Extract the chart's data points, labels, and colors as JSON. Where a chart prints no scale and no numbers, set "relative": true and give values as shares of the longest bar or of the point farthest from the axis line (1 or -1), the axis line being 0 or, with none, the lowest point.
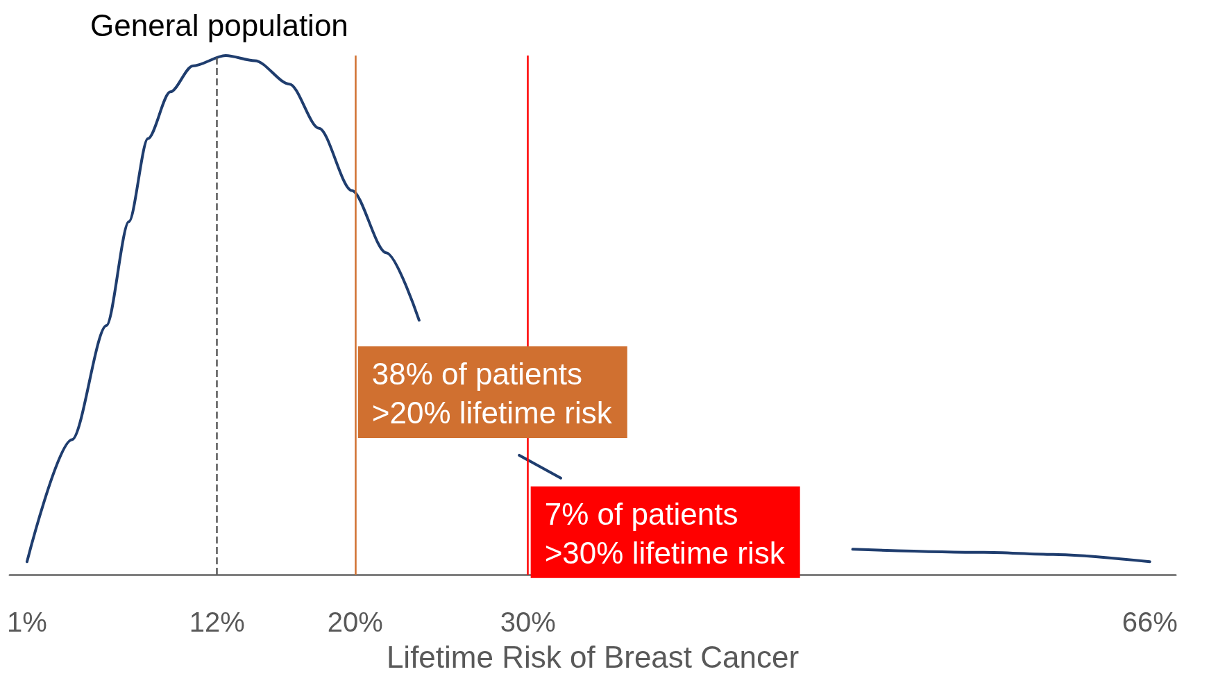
{
  "chart_data": {
    "type": "line",
    "relative": true,
    "xlabel": "Lifetime Risk of Breast Cancer",
    "x": [
      1,
      3.6,
      5.6,
      6.9,
      8.0,
      9.3,
      10.6,
      12.5,
      14.2,
      16.2,
      17.9,
      19.8,
      21.8,
      23.7,
      25.6,
      27.6,
      29.5,
      31.9,
      34.3,
      40,
      48.8,
      56.4,
      60.4,
      66
    ],
    "xlim": [
      0,
      67.5
    ],
    "xticks": [
      {
        "value": 1,
        "label": "1%"
      },
      {
        "value": 12,
        "label": "12%"
      },
      {
        "value": 20,
        "label": "20%"
      },
      {
        "value": 30,
        "label": "30%"
      },
      {
        "value": 66,
        "label": "66%"
      }
    ],
    "series": [
      {
        "color": "#1f3d6e",
        "values": [
          0.025,
          0.26,
          0.48,
          0.68,
          0.84,
          0.93,
          0.98,
          1.0,
          0.99,
          0.945,
          0.86,
          0.74,
          0.62,
          0.49,
          null,
          null,
          0.23,
          0.186,
          null,
          null,
          0.049,
          0.043,
          0.039,
          0.025
        ]
      }
    ],
    "ref_lines": [
      {
        "axis": "x",
        "value": 12,
        "color": "#595959",
        "line_style": "dashed"
      },
      {
        "axis": "x",
        "value": 20,
        "color": "#d07030",
        "line_style": "solid"
      },
      {
        "axis": "x",
        "value": 30,
        "color": "#ff0000",
        "line_style": "solid"
      }
    ],
    "annotations": [
      "General population",
      {
        "text": "38% of patients\n>20% lifetime risk",
        "x": 20,
        "y": 0.44
      },
      {
        "text": "7% of patients\n>30% lifetime risk",
        "x": 30,
        "y": 0.17
      }
    ],
    "grid": false,
    "marker": "none",
    "line_style": "solid"
  }
}
